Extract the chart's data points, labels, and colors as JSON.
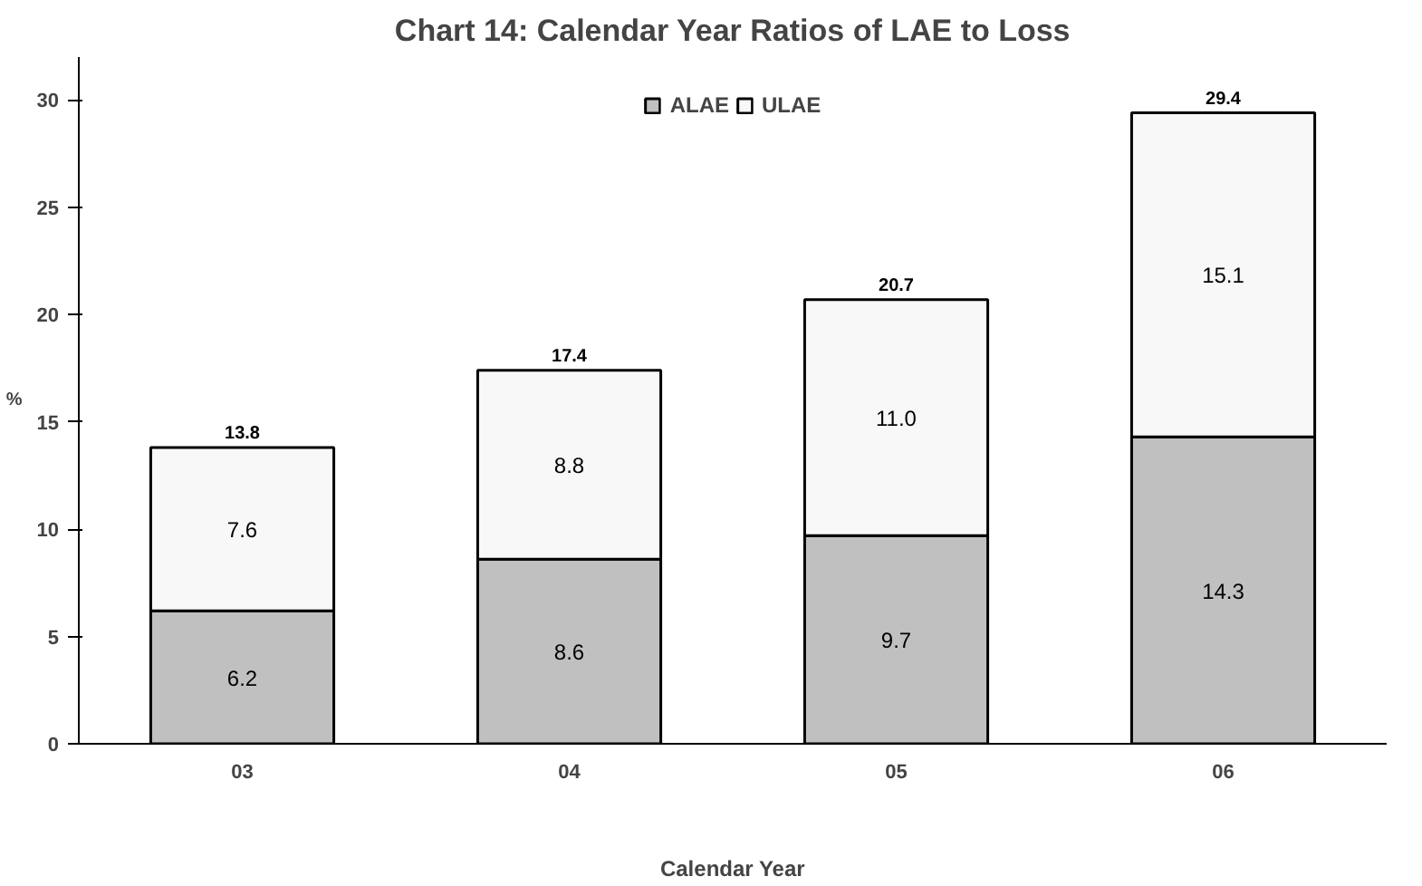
{
  "chart_data": {
    "type": "bar",
    "title": "Chart 14: Calendar Year Ratios of LAE to Loss",
    "ylabel": "%",
    "xlabel": "Calendar Year",
    "categories": [
      "03",
      "04",
      "05",
      "06"
    ],
    "stacked": true,
    "series": [
      {
        "name": "ALAE",
        "color": "#c0c0c0",
        "values": [
          6.2,
          8.6,
          9.7,
          14.3
        ],
        "value_labels": [
          "6.2",
          "8.6",
          "9.7",
          "14.3"
        ]
      },
      {
        "name": "ULAE",
        "color": "#f8f8f8",
        "values": [
          7.6,
          8.8,
          11.0,
          15.1
        ],
        "value_labels": [
          "7.6",
          "8.8",
          "11.0",
          "15.1"
        ]
      }
    ],
    "totals": [
      "13.8",
      "17.4",
      "20.7",
      "29.4"
    ],
    "ylim": [
      0,
      32
    ],
    "yticks": [
      0,
      5,
      10,
      15,
      20,
      25,
      30
    ],
    "legend": "top",
    "grid": false
  }
}
